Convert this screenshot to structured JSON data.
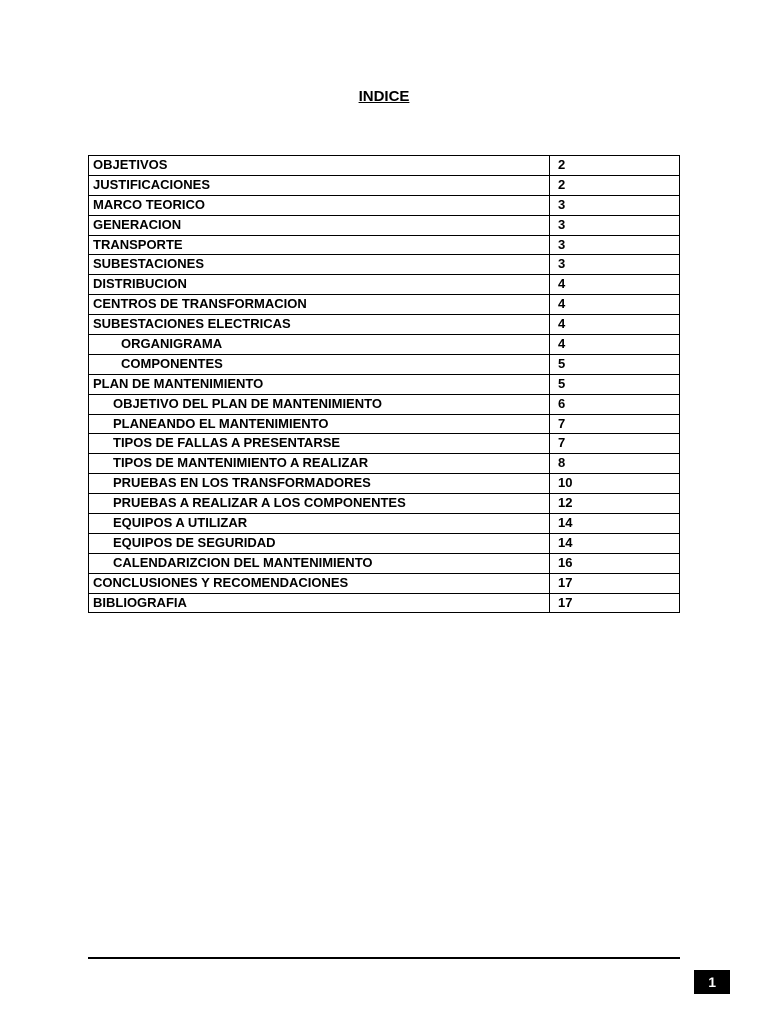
{
  "document": {
    "title": "INDICE",
    "page_number": "1",
    "background_color": "#ffffff",
    "text_color": "#000000",
    "border_color": "#000000",
    "title_fontsize": 15,
    "body_fontsize": 13
  },
  "toc": {
    "columns": [
      "title",
      "page"
    ],
    "rows": [
      {
        "title": "OBJETIVOS",
        "page": "2",
        "indent": 0
      },
      {
        "title": "JUSTIFICACIONES",
        "page": "2",
        "indent": 0
      },
      {
        "title": "MARCO TEORICO",
        "page": "3",
        "indent": 0
      },
      {
        "title": "GENERACION",
        "page": "3",
        "indent": 0
      },
      {
        "title": "TRANSPORTE",
        "page": "3",
        "indent": 0
      },
      {
        "title": "SUBESTACIONES",
        "page": "3",
        "indent": 0
      },
      {
        "title": "DISTRIBUCION",
        "page": "4",
        "indent": 0
      },
      {
        "title": "CENTROS DE TRANSFORMACION",
        "page": "4",
        "indent": 0
      },
      {
        "title": "SUBESTACIONES ELECTRICAS",
        "page": "4",
        "indent": 0
      },
      {
        "title": "ORGANIGRAMA",
        "page": "4",
        "indent": 1
      },
      {
        "title": "COMPONENTES",
        "page": "5",
        "indent": 1
      },
      {
        "title": "PLAN DE MANTENIMIENTO",
        "page": "5",
        "indent": 0
      },
      {
        "title": "OBJETIVO DEL PLAN DE MANTENIMIENTO",
        "page": "6",
        "indent": 2
      },
      {
        "title": "PLANEANDO EL MANTENIMIENTO",
        "page": "7",
        "indent": 2
      },
      {
        "title": "TIPOS DE FALLAS A PRESENTARSE",
        "page": "7",
        "indent": 2
      },
      {
        "title": "TIPOS DE MANTENIMIENTO A REALIZAR",
        "page": "8",
        "indent": 2
      },
      {
        "title": "PRUEBAS EN LOS TRANSFORMADORES",
        "page": "10",
        "indent": 2
      },
      {
        "title": "PRUEBAS A REALIZAR A LOS COMPONENTES",
        "page": "12",
        "indent": 2
      },
      {
        "title": "EQUIPOS A UTILIZAR",
        "page": "14",
        "indent": 2
      },
      {
        "title": "EQUIPOS DE SEGURIDAD",
        "page": "14",
        "indent": 2
      },
      {
        "title": "CALENDARIZCION DEL MANTENIMIENTO",
        "page": "16",
        "indent": 2
      },
      {
        "title": "CONCLUSIONES Y RECOMENDACIONES",
        "page": "17",
        "indent": 0
      },
      {
        "title": "BIBLIOGRAFIA",
        "page": "17",
        "indent": 0
      }
    ]
  }
}
